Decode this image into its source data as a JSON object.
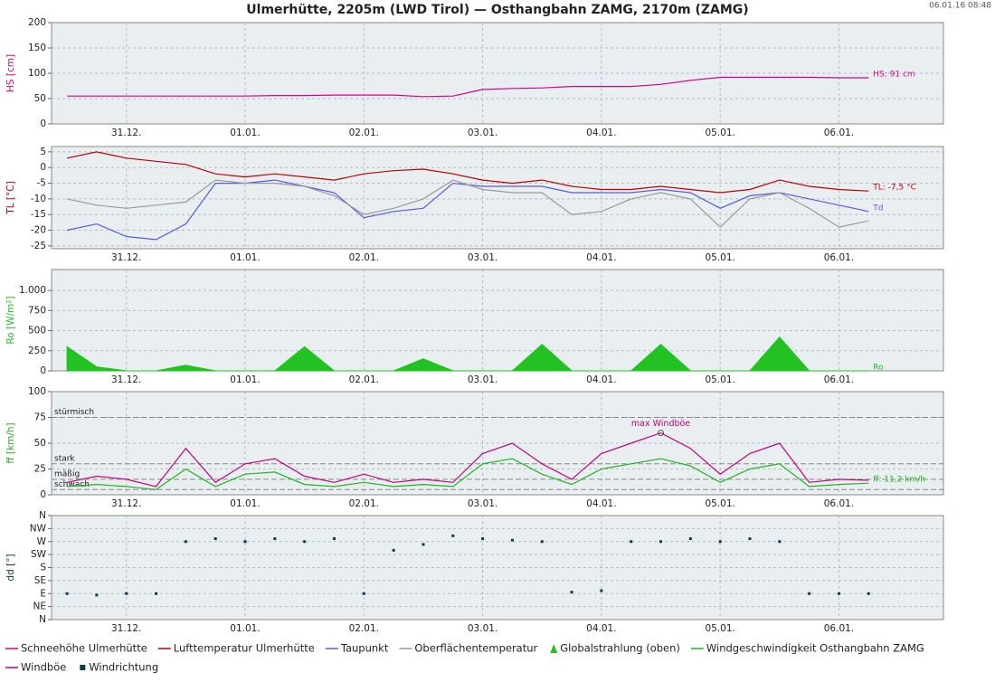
{
  "chart_data": {
    "title": "Ulmerhütte, 2205m (LWD Tirol) — Osthangbahn ZAMG, 2170m (ZAMG)",
    "timestamp": "06.01.16 08:48",
    "xlim": [
      -0.63,
      6.88
    ],
    "xticks": [
      {
        "value": 0,
        "label": "31.12."
      },
      {
        "value": 1,
        "label": "01.01."
      },
      {
        "value": 2,
        "label": "02.01."
      },
      {
        "value": 3,
        "label": "03.01."
      },
      {
        "value": 4,
        "label": "04.01."
      },
      {
        "value": 5,
        "label": "05.01."
      },
      {
        "value": 6,
        "label": "06.01."
      }
    ],
    "x": [
      -0.5,
      -0.25,
      0,
      0.25,
      0.5,
      0.75,
      1,
      1.25,
      1.5,
      1.75,
      2,
      2.25,
      2.5,
      2.75,
      3,
      3.25,
      3.5,
      3.75,
      4,
      4.25,
      4.5,
      4.75,
      5,
      5.25,
      5.5,
      5.75,
      6,
      6.25
    ],
    "grid": true,
    "panels": [
      {
        "type": "line",
        "ylabel": "HS [cm]",
        "ylim": [
          0,
          200
        ],
        "yticks": [
          0,
          50,
          100,
          150,
          200
        ],
        "series": [
          {
            "name": "Schneehöhe Ulmerhütte",
            "color": "#d9008a",
            "end_label": "HS: 91 cm",
            "values": [
              55,
              55,
              55,
              55,
              55,
              55,
              55,
              56,
              56,
              57,
              57,
              57,
              54,
              55,
              68,
              70,
              71,
              74,
              74,
              74,
              78,
              86,
              92,
              92,
              92,
              92,
              91,
              91
            ]
          }
        ]
      },
      {
        "type": "line",
        "ylabel": "TL [°C]",
        "ylim": [
          -25.9,
          6.7
        ],
        "yticks": [
          5,
          0,
          -5,
          -10,
          -15,
          -20,
          -25
        ],
        "series": [
          {
            "name": "Lufttemperatur Ulmerhütte",
            "color": "#c00000",
            "end_label": "TL: -7,5 °C",
            "values": [
              3,
              5,
              3,
              2,
              1,
              -2,
              -3,
              -2,
              -3,
              -4,
              -2,
              -1,
              -0.5,
              -2,
              -4,
              -5,
              -4,
              -6,
              -7,
              -7,
              -6,
              -7,
              -8,
              -7,
              -4,
              -6,
              -7,
              -7.5
            ]
          },
          {
            "name": "Taupunkt",
            "color": "#5a5ae6",
            "end_label": "Td",
            "values": [
              -20,
              -18,
              -22,
              -23,
              -18,
              -5,
              -5,
              -4,
              -6,
              -8,
              -16,
              -14,
              -13,
              -5,
              -6,
              -6,
              -6,
              -8,
              -8,
              -8,
              -7,
              -8,
              -13,
              -9,
              -8,
              -10,
              -12,
              -14
            ]
          },
          {
            "name": "Oberflächentemperatur",
            "color": "#9a9a9a",
            "values": [
              -10,
              -12,
              -13,
              -12,
              -11,
              -4,
              -5,
              -5,
              -6,
              -9,
              -15,
              -13,
              -10,
              -4,
              -7,
              -8,
              -8,
              -15,
              -14,
              -10,
              -8,
              -10,
              -19,
              -10,
              -8,
              -13,
              -19,
              -17
            ]
          }
        ]
      },
      {
        "type": "area",
        "ylabel": "Ro [W/m²]",
        "ylim": [
          0,
          1260
        ],
        "yticks": [
          0,
          250,
          500,
          750,
          {
            "value": 1000,
            "label": "1.000"
          }
        ],
        "series": [
          {
            "name": "Globalstrahlung (oben)",
            "color": "#22c222",
            "end_label": "Ro",
            "values": [
              300,
              50,
              0,
              0,
              70,
              0,
              0,
              0,
              300,
              0,
              0,
              0,
              150,
              0,
              0,
              0,
              330,
              0,
              0,
              0,
              330,
              0,
              0,
              0,
              420,
              0,
              0,
              0
            ]
          }
        ]
      },
      {
        "type": "line",
        "ylabel": "ff [km/h]",
        "ylim": [
          0,
          100
        ],
        "yticks": [
          0,
          25,
          50,
          75,
          100
        ],
        "levels": [
          {
            "value": 75,
            "label": "stürmisch"
          },
          {
            "value": 30,
            "label": "stark"
          },
          {
            "value": 15,
            "label": "mäßig"
          },
          {
            "value": 5,
            "label": "schwach"
          }
        ],
        "max_label": "max Windböe",
        "series": [
          {
            "name": "Windgeschwindigkeit Osthangbahn ZAMG",
            "color": "#22b522",
            "end_label": "ff: 11,2 km/h",
            "values": [
              8,
              10,
              8,
              5,
              25,
              8,
              20,
              22,
              10,
              8,
              12,
              8,
              10,
              8,
              30,
              35,
              20,
              10,
              25,
              30,
              35,
              28,
              12,
              25,
              30,
              8,
              10,
              11.2
            ]
          },
          {
            "name": "Windböe",
            "color": "#c8007a",
            "values": [
              12,
              18,
              15,
              8,
              45,
              12,
              30,
              35,
              18,
              12,
              20,
              12,
              15,
              12,
              40,
              50,
              30,
              15,
              40,
              50,
              60,
              45,
              20,
              40,
              50,
              12,
              15,
              14
            ]
          }
        ]
      },
      {
        "type": "scatter",
        "ylabel": "dd [°]",
        "ylim": [
          0,
          360
        ],
        "yticks": [
          {
            "value": 0,
            "label": "N"
          },
          {
            "value": 45,
            "label": "NE"
          },
          {
            "value": 90,
            "label": "E"
          },
          {
            "value": 135,
            "label": "SE"
          },
          {
            "value": 180,
            "label": "S"
          },
          {
            "value": 225,
            "label": "SW"
          },
          {
            "value": 270,
            "label": "W"
          },
          {
            "value": 315,
            "label": "NW"
          },
          {
            "value": 360,
            "label": "N"
          }
        ],
        "series": [
          {
            "name": "Windrichtung",
            "color": "#0b3b50",
            "values": [
              90,
              85,
              90,
              90,
              270,
              280,
              270,
              280,
              270,
              280,
              90,
              240,
              260,
              290,
              280,
              275,
              270,
              95,
              100,
              270,
              270,
              280,
              270,
              280,
              270,
              90,
              90,
              90
            ]
          }
        ]
      }
    ]
  }
}
